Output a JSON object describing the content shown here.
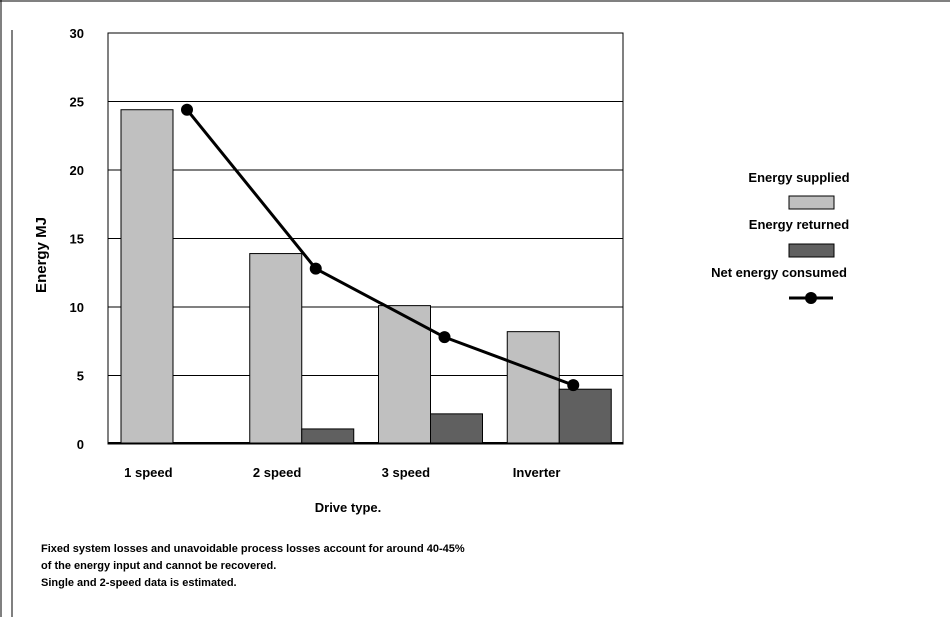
{
  "chart_data": {
    "type": "bar",
    "categories": [
      "1 speed",
      "2 speed",
      "3 speed",
      "Inverter"
    ],
    "series": [
      {
        "name": "Energy supplied",
        "kind": "bar",
        "color": "#c0c0c0",
        "values": [
          24.4,
          13.9,
          10.1,
          8.2
        ]
      },
      {
        "name": "Energy returned",
        "kind": "bar",
        "color": "#606060",
        "values": [
          0.1,
          1.1,
          2.2,
          4.0
        ]
      },
      {
        "name": "Net energy consumed",
        "kind": "line",
        "color": "#000000",
        "values": [
          24.4,
          12.8,
          7.8,
          4.3
        ]
      }
    ],
    "xlabel": "Drive type.",
    "ylabel": "Energy MJ",
    "ylim": [
      0,
      30
    ],
    "yticks": [
      0,
      5,
      10,
      15,
      20,
      25,
      30
    ],
    "grid": true,
    "legend_position": "right"
  },
  "notes": [
    "Fixed system losses and unavoidable process losses account for around 40-45%",
    "of the energy input and cannot be recovered.",
    "Single and 2-speed data is estimated."
  ]
}
